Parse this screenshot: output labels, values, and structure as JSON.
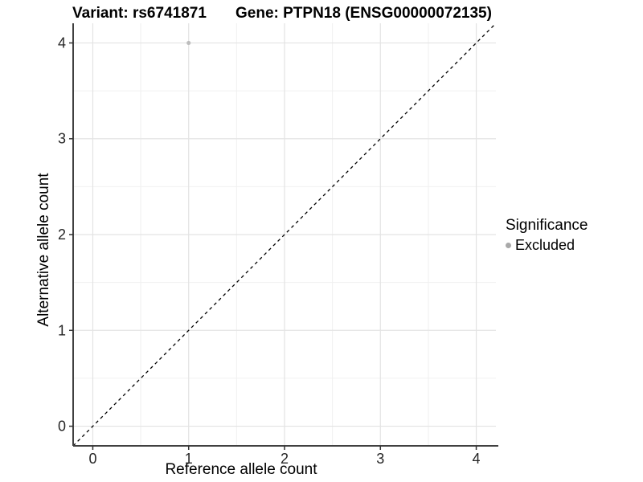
{
  "titles": {
    "variant": "Variant: rs6741871",
    "gene": "Gene: PTPN18 (ENSG00000072135)"
  },
  "chart_data": {
    "type": "scatter",
    "xlabel": "Reference allele count",
    "ylabel": "Alternative allele count",
    "xlim": [
      -0.205,
      4.205
    ],
    "ylim": [
      -0.205,
      4.205
    ],
    "x_ticks": [
      0,
      1,
      2,
      3,
      4
    ],
    "y_ticks": [
      0,
      1,
      2,
      3,
      4
    ],
    "x_minor_ticks": [
      0.5,
      1.5,
      2.5,
      3.5
    ],
    "y_minor_ticks": [
      0.5,
      1.5,
      2.5,
      3.5
    ],
    "grid": "major+minor",
    "reference_line": {
      "type": "identity",
      "style": "dashed",
      "x1": -0.205,
      "y1": -0.205,
      "x2": 4.205,
      "y2": 4.205,
      "color": "#000000"
    },
    "series": [
      {
        "name": "Excluded",
        "color": "#bdbdbd",
        "point_radius": 2.6,
        "points": [
          [
            1,
            4
          ]
        ]
      }
    ],
    "legend": {
      "title": "Significance",
      "position": "right",
      "items": [
        {
          "label": "Excluded",
          "color": "#a9a9a9"
        }
      ]
    }
  },
  "colors": {
    "background": "#ffffff",
    "axis_line": "#404040",
    "grid_major": "#e3e3e3",
    "grid_minor": "#f0f0f0",
    "tick_mark": "#333333",
    "tick_label": "#262626"
  }
}
